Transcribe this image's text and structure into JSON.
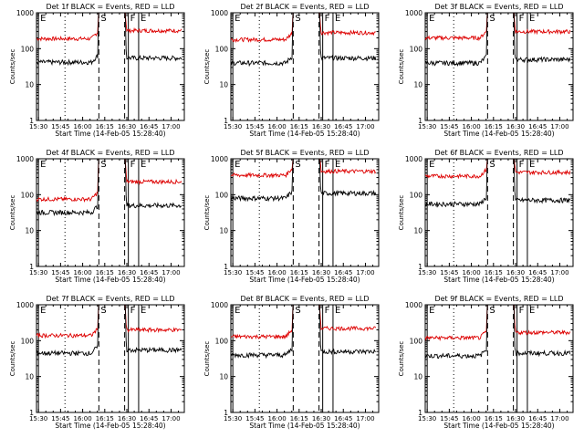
{
  "colors": {
    "events": "#000000",
    "lld": "#dd0000",
    "axis": "#000000"
  },
  "chart_data": {
    "type": "line",
    "layout": "3x3 grid",
    "xlabel": "Start Time (14-Feb-05 15:28:40)",
    "ylabel": "Counts/sec",
    "y_scale": "log",
    "ylim": [
      1,
      1000
    ],
    "y_ticks": [
      1,
      10,
      100,
      1000
    ],
    "x_ticks": [
      "15:30",
      "15:45",
      "16:00",
      "16:15",
      "16:30",
      "16:45",
      "17:00"
    ],
    "x_tick_minutes": [
      930,
      945,
      960,
      975,
      990,
      1005,
      1020
    ],
    "xlim_minutes": [
      928.67,
      1029
    ],
    "markers": [
      {
        "label": "E",
        "time_minutes": 930,
        "style": "solid"
      },
      {
        "label": "",
        "time_minutes": 948,
        "style": "dotted"
      },
      {
        "label": "S",
        "time_minutes": 971,
        "style": "dashed"
      },
      {
        "label": "",
        "time_minutes": 988.5,
        "style": "dashed"
      },
      {
        "label": "F",
        "time_minutes": 991,
        "style": "solid"
      },
      {
        "label": "E",
        "time_minutes": 998,
        "style": "solid"
      }
    ],
    "panels": [
      {
        "title": "Det 1f BLACK = Events, RED = LLD",
        "events_level": 42,
        "lld_level": 190,
        "events_after": 55,
        "lld_after": 320
      },
      {
        "title": "Det 2f BLACK = Events, RED = LLD",
        "events_level": 40,
        "lld_level": 180,
        "events_after": 55,
        "lld_after": 280
      },
      {
        "title": "Det 3f BLACK = Events, RED = LLD",
        "events_level": 40,
        "lld_level": 200,
        "events_after": 50,
        "lld_after": 300
      },
      {
        "title": "Det 4f BLACK = Events, RED = LLD",
        "events_level": 32,
        "lld_level": 75,
        "events_after": 50,
        "lld_after": 230
      },
      {
        "title": "Det 5f BLACK = Events, RED = LLD",
        "events_level": 80,
        "lld_level": 350,
        "events_after": 110,
        "lld_after": 450
      },
      {
        "title": "Det 6f BLACK = Events, RED = LLD",
        "events_level": 55,
        "lld_level": 330,
        "events_after": 70,
        "lld_after": 420
      },
      {
        "title": "Det 7f BLACK = Events, RED = LLD",
        "events_level": 45,
        "lld_level": 140,
        "events_after": 55,
        "lld_after": 200
      },
      {
        "title": "Det 8f BLACK = Events, RED = LLD",
        "events_level": 40,
        "lld_level": 130,
        "events_after": 50,
        "lld_after": 220
      },
      {
        "title": "Det 9f BLACK = Events, RED = LLD",
        "events_level": 38,
        "lld_level": 120,
        "events_after": 45,
        "lld_after": 170
      }
    ]
  }
}
